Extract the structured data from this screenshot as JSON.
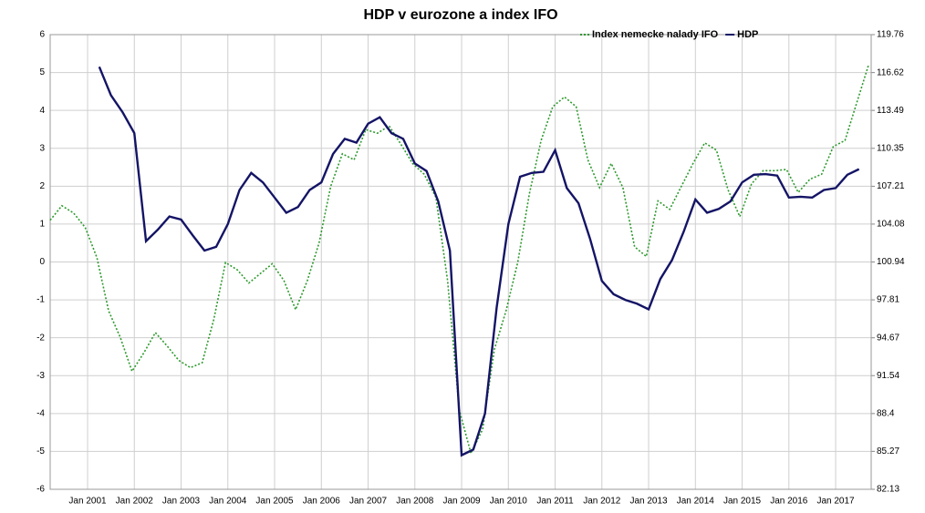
{
  "chart_data": {
    "type": "line",
    "title": "HDP v eurozone a index IFO",
    "legend": "top-right",
    "grid": true,
    "xlim": [
      2000.2,
      2017.76
    ],
    "xticks": [
      {
        "value": 2001,
        "label": "Jan 2001"
      },
      {
        "value": 2002,
        "label": "Jan 2002"
      },
      {
        "value": 2003,
        "label": "Jan 2003"
      },
      {
        "value": 2004,
        "label": "Jan 2004"
      },
      {
        "value": 2005,
        "label": "Jan 2005"
      },
      {
        "value": 2006,
        "label": "Jan 2006"
      },
      {
        "value": 2007,
        "label": "Jan 2007"
      },
      {
        "value": 2008,
        "label": "Jan 2008"
      },
      {
        "value": 2009,
        "label": "Jan 2009"
      },
      {
        "value": 2010,
        "label": "Jan 2010"
      },
      {
        "value": 2011,
        "label": "Jan 2011"
      },
      {
        "value": 2012,
        "label": "Jan 2012"
      },
      {
        "value": 2013,
        "label": "Jan 2013"
      },
      {
        "value": 2014,
        "label": "Jan 2014"
      },
      {
        "value": 2015,
        "label": "Jan 2015"
      },
      {
        "value": 2016,
        "label": "Jan 2016"
      },
      {
        "value": 2017,
        "label": "Jan 2017"
      }
    ],
    "ylim": [
      -6,
      6
    ],
    "yticks": [
      -6,
      -5,
      -4,
      -3,
      -2,
      -1,
      0,
      1,
      2,
      3,
      4,
      5,
      6
    ],
    "y2lim": [
      82.13,
      119.76
    ],
    "y2ticks": [
      82.13,
      85.27,
      88.4,
      91.54,
      94.67,
      97.81,
      100.94,
      104.08,
      107.21,
      110.35,
      113.49,
      116.62,
      119.76
    ],
    "series": [
      {
        "name": "Index nemecke nalady IFO",
        "color": "#2e9a2e",
        "axis": "y2",
        "dash": "dotted",
        "x": [
          2000.2,
          2000.45,
          2000.7,
          2000.95,
          2001.2,
          2001.45,
          2001.7,
          2001.95,
          2002.2,
          2002.45,
          2002.7,
          2002.95,
          2003.2,
          2003.45,
          2003.7,
          2003.95,
          2004.2,
          2004.45,
          2004.7,
          2004.95,
          2005.2,
          2005.45,
          2005.7,
          2005.95,
          2006.2,
          2006.45,
          2006.7,
          2006.95,
          2007.2,
          2007.45,
          2007.7,
          2007.95,
          2008.2,
          2008.45,
          2008.7,
          2008.95,
          2009.2,
          2009.45,
          2009.7,
          2009.95,
          2010.2,
          2010.45,
          2010.7,
          2010.95,
          2011.2,
          2011.45,
          2011.7,
          2011.95,
          2012.2,
          2012.45,
          2012.7,
          2012.95,
          2013.2,
          2013.45,
          2013.7,
          2013.95,
          2014.2,
          2014.45,
          2014.7,
          2014.95,
          2015.2,
          2015.45,
          2015.7,
          2015.95,
          2016.2,
          2016.45,
          2016.7,
          2016.95,
          2017.2,
          2017.45,
          2017.7
        ],
        "values": [
          104.4,
          105.6,
          105.0,
          103.8,
          101.3,
          96.9,
          94.7,
          91.9,
          93.4,
          95.1,
          94.0,
          92.8,
          92.2,
          92.6,
          96.2,
          100.9,
          100.3,
          99.2,
          100.0,
          100.8,
          99.4,
          97.0,
          99.4,
          102.5,
          107.2,
          109.9,
          109.4,
          111.9,
          111.6,
          112.2,
          110.7,
          109.1,
          108.2,
          106.3,
          99.4,
          88.7,
          85.1,
          87.1,
          93.7,
          96.9,
          100.9,
          106.6,
          111.0,
          113.8,
          114.6,
          113.8,
          109.4,
          107.1,
          109.1,
          107.1,
          102.2,
          101.4,
          106.0,
          105.3,
          107.2,
          109.1,
          110.8,
          110.2,
          106.9,
          104.7,
          107.4,
          108.5,
          108.5,
          108.6,
          106.7,
          107.8,
          108.2,
          110.5,
          111.0,
          114.1,
          117.2
        ]
      },
      {
        "name": "HDP",
        "color": "#141466",
        "axis": "y",
        "dash": "solid",
        "x": [
          2001.25,
          2001.5,
          2001.75,
          2002,
          2002.25,
          2002.5,
          2002.75,
          2003,
          2003.25,
          2003.5,
          2003.75,
          2004,
          2004.25,
          2004.5,
          2004.75,
          2005,
          2005.25,
          2005.5,
          2005.75,
          2006,
          2006.25,
          2006.5,
          2006.75,
          2007,
          2007.25,
          2007.5,
          2007.75,
          2008,
          2008.25,
          2008.5,
          2008.75,
          2009,
          2009.25,
          2009.5,
          2009.75,
          2010,
          2010.25,
          2010.5,
          2010.75,
          2011,
          2011.25,
          2011.5,
          2011.75,
          2012,
          2012.25,
          2012.5,
          2012.75,
          2013,
          2013.25,
          2013.5,
          2013.75,
          2014,
          2014.25,
          2014.5,
          2014.75,
          2015,
          2015.25,
          2015.5,
          2015.75,
          2016,
          2016.25,
          2016.5,
          2016.75,
          2017,
          2017.25,
          2017.5
        ],
        "values": [
          5.15,
          4.4,
          3.95,
          3.4,
          0.55,
          0.85,
          1.2,
          1.12,
          0.7,
          0.3,
          0.4,
          1.0,
          1.9,
          2.35,
          2.1,
          1.7,
          1.3,
          1.45,
          1.9,
          2.1,
          2.85,
          3.25,
          3.15,
          3.65,
          3.82,
          3.4,
          3.25,
          2.6,
          2.4,
          1.6,
          0.3,
          -5.1,
          -4.95,
          -4.0,
          -1.2,
          1.0,
          2.25,
          2.35,
          2.38,
          2.95,
          1.95,
          1.55,
          0.6,
          -0.5,
          -0.85,
          -1.0,
          -1.1,
          -1.25,
          -0.45,
          0.05,
          0.8,
          1.65,
          1.3,
          1.4,
          1.6,
          2.1,
          2.3,
          2.32,
          2.28,
          1.7,
          1.72,
          1.7,
          1.9,
          1.95,
          2.3,
          2.45
        ]
      }
    ]
  }
}
